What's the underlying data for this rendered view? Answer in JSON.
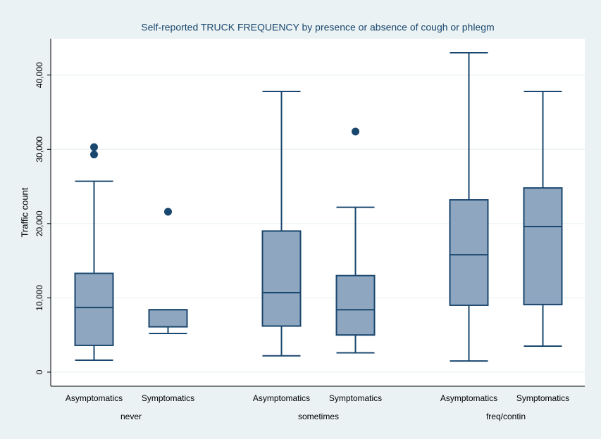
{
  "chart_data": {
    "type": "box",
    "title": "Self-reported TRUCK FREQUENCY by presence or absence of cough or phlegm",
    "ylabel": "Traffic count",
    "ylim": [
      -1900,
      44900
    ],
    "yticks": [
      0,
      {
        "value": 10000,
        "label": "10,000"
      },
      {
        "value": 20000,
        "label": "20,000"
      },
      {
        "value": 30000,
        "label": "30,000"
      },
      {
        "value": 40000,
        "label": "40,000"
      }
    ],
    "grid": true,
    "color": "#8ea6bf",
    "line_color": "#1a476f",
    "groups": [
      {
        "name": "never",
        "boxes": [
          {
            "label": "Asymptomatics",
            "whisker_low": 1600,
            "q1": 3600,
            "median": 8700,
            "q3": 13300,
            "whisker_high": 25700,
            "outliers": [
              29300,
              30300
            ]
          },
          {
            "label": "Symptomatics",
            "whisker_low": 5200,
            "q1": 6100,
            "median": 6100,
            "q3": 8400,
            "whisker_high": 8400,
            "outliers": [
              21600
            ]
          }
        ]
      },
      {
        "name": "sometimes",
        "boxes": [
          {
            "label": "Asymptomatics",
            "whisker_low": 2200,
            "q1": 6200,
            "median": 10700,
            "q3": 19000,
            "whisker_high": 37800,
            "outliers": []
          },
          {
            "label": "Symptomatics",
            "whisker_low": 2600,
            "q1": 5000,
            "median": 8400,
            "q3": 13000,
            "whisker_high": 22200,
            "outliers": [
              32400
            ]
          }
        ]
      },
      {
        "name": "freq/contin",
        "boxes": [
          {
            "label": "Asymptomatics",
            "whisker_low": 1500,
            "q1": 9000,
            "median": 15800,
            "q3": 23200,
            "whisker_high": 43000,
            "outliers": []
          },
          {
            "label": "Symptomatics",
            "whisker_low": 3500,
            "q1": 9100,
            "median": 19600,
            "q3": 24800,
            "whisker_high": 37800,
            "outliers": []
          }
        ]
      }
    ]
  }
}
